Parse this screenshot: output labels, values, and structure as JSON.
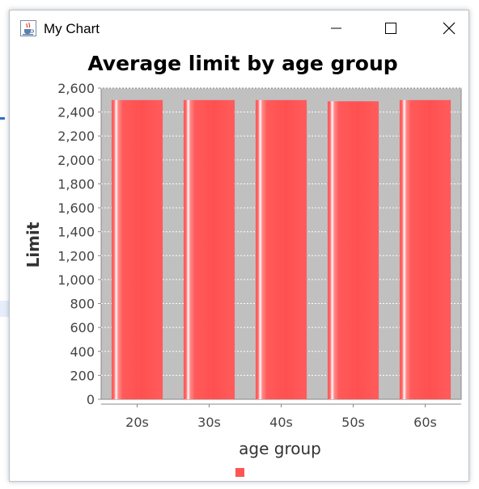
{
  "window": {
    "title": "My Chart",
    "app_icon": "java-cup-icon",
    "controls": [
      "minimize-icon",
      "maximize-icon",
      "close-icon"
    ]
  },
  "chart_data": {
    "type": "bar",
    "title": "Average limit by age group",
    "xlabel": "age group",
    "ylabel": "Limit",
    "categories": [
      "20s",
      "30s",
      "40s",
      "50s",
      "60s"
    ],
    "series": [
      {
        "values": [
          2500,
          2500,
          2500,
          2490,
          2500
        ],
        "color": "#ff5555"
      }
    ],
    "ylim": [
      0,
      2600
    ],
    "yticks": [
      "0",
      "200",
      "400",
      "600",
      "800",
      "1,000",
      "1,200",
      "1,400",
      "1,600",
      "1,800",
      "2,000",
      "2,200",
      "2,400",
      "2,600"
    ],
    "grid": true,
    "plot_background": "#c0c0c0",
    "legend": "bottom"
  }
}
